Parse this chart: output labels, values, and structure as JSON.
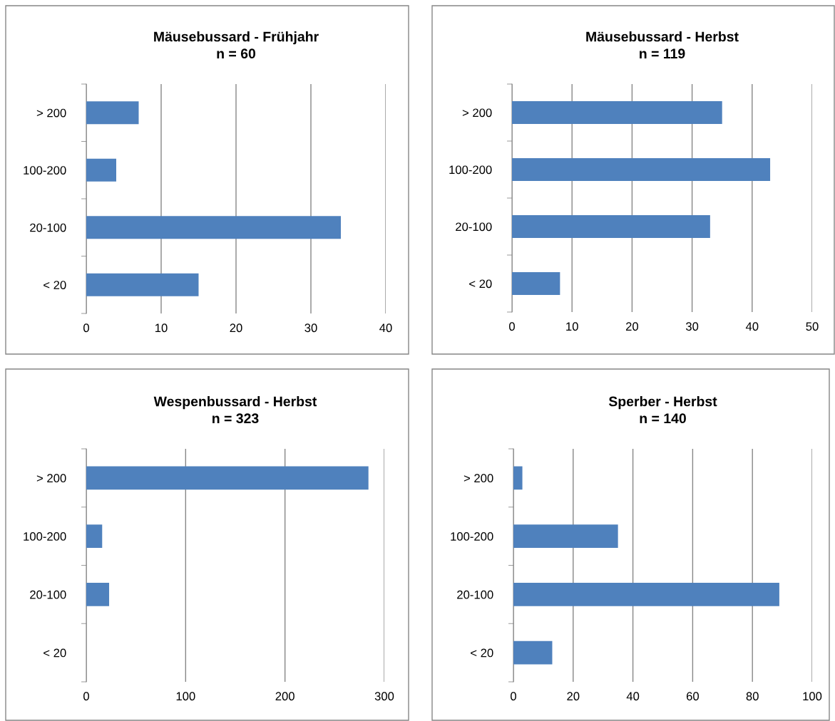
{
  "chart_data": [
    {
      "type": "bar",
      "orientation": "horizontal",
      "title": "Mäusebussard - Frühjahr\nn = 60",
      "categories": [
        "> 200",
        "100-200",
        "20-100",
        "< 20"
      ],
      "values": [
        7,
        4,
        34,
        15
      ],
      "color": "#4f81bd",
      "xlim": [
        0,
        40
      ],
      "xticks": [
        0,
        10,
        20,
        30,
        40
      ],
      "grid": "x",
      "legend": false
    },
    {
      "type": "bar",
      "orientation": "horizontal",
      "title": "Mäusebussard - Herbst\nn = 119",
      "categories": [
        "> 200",
        "100-200",
        "20-100",
        "< 20"
      ],
      "values": [
        35,
        43,
        33,
        8
      ],
      "color": "#4f81bd",
      "xlim": [
        0,
        50
      ],
      "xticks": [
        0,
        10,
        20,
        30,
        40,
        50
      ],
      "grid": "x",
      "legend": false
    },
    {
      "type": "bar",
      "orientation": "horizontal",
      "title": "Wespenbussard - Herbst\nn = 323",
      "categories": [
        "> 200",
        "100-200",
        "20-100",
        "< 20"
      ],
      "values": [
        284,
        16,
        23,
        0
      ],
      "color": "#4f81bd",
      "xlim": [
        0,
        300
      ],
      "xticks": [
        0,
        100,
        200,
        300
      ],
      "grid": "x",
      "legend": false
    },
    {
      "type": "bar",
      "orientation": "horizontal",
      "title": "Sperber - Herbst\nn = 140",
      "categories": [
        "> 200",
        "100-200",
        "20-100",
        "< 20"
      ],
      "values": [
        3,
        35,
        89,
        13
      ],
      "color": "#4f81bd",
      "xlim": [
        0,
        100
      ],
      "xticks": [
        0,
        20,
        40,
        60,
        80,
        100
      ],
      "grid": "x",
      "legend": false
    }
  ]
}
